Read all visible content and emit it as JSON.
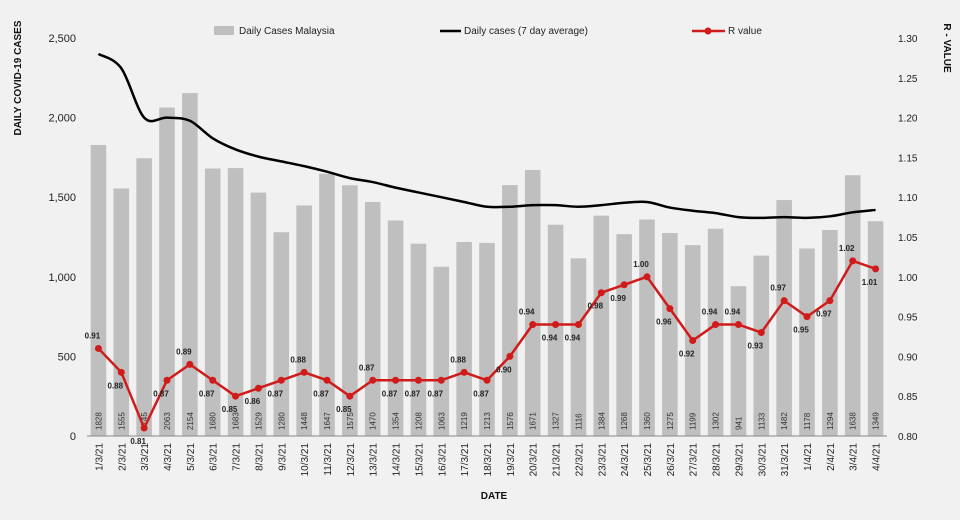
{
  "chart_data": {
    "type": "bar",
    "xlabel": "DATE",
    "ylabel": "DAILY COVID-19 CASES",
    "y2label": "R - VALUE",
    "ylim": [
      0,
      2500
    ],
    "y2lim": [
      0.8,
      1.3
    ],
    "y_ticks": [
      "0",
      "500",
      "1,000",
      "1,500",
      "2,000",
      "2,500"
    ],
    "y2_ticks": [
      "0.80",
      "0.85",
      "0.90",
      "0.95",
      "1.00",
      "1.05",
      "1.10",
      "1.15",
      "1.20",
      "1.25",
      "1.30"
    ],
    "legend_placement": "top",
    "grid": false,
    "categories": [
      "1/3/21",
      "2/3/21",
      "3/3/21",
      "4/3/21",
      "5/3/21",
      "6/3/21",
      "7/3/21",
      "8/3/21",
      "9/3/21",
      "10/3/21",
      "11/3/21",
      "12/3/21",
      "13/3/21",
      "14/3/21",
      "15/3/21",
      "16/3/21",
      "17/3/21",
      "18/3/21",
      "19/3/21",
      "20/3/21",
      "21/3/21",
      "22/3/21",
      "23/3/21",
      "24/3/21",
      "25/3/21",
      "26/3/21",
      "27/3/21",
      "28/3/21",
      "29/3/21",
      "30/3/21",
      "31/3/21",
      "1/4/21",
      "2/4/21",
      "3/4/21",
      "4/4/21"
    ],
    "series": [
      {
        "name": "Daily Cases Malaysia",
        "type": "bar",
        "axis": "left",
        "color": "#bfbfbf",
        "values": [
          1828,
          1555,
          1745,
          2063,
          2154,
          1680,
          1683,
          1529,
          1280,
          1448,
          1647,
          1575,
          1470,
          1354,
          1208,
          1063,
          1219,
          1213,
          1576,
          1671,
          1327,
          1116,
          1384,
          1268,
          1360,
          1275,
          1199,
          1302,
          941,
          1133,
          1482,
          1178,
          1294,
          1638,
          1349
        ],
        "labels": [
          "1828",
          "1555",
          "1745",
          "2063",
          "2154",
          "1680",
          "1683",
          "1529",
          "1280",
          "1448",
          "1647",
          "1575",
          "1470",
          "1354",
          "1208",
          "1063",
          "1219",
          "1213",
          "1576",
          "1671",
          "1327",
          "1116",
          "1384",
          "1268",
          "1360",
          "1275",
          "1199",
          "1302",
          "941",
          "1133",
          "1482",
          "1178",
          "1294",
          "1638",
          "1349"
        ]
      },
      {
        "name": "Daily cases (7 day average)",
        "type": "line",
        "axis": "left",
        "color": "#000000",
        "values": [
          2400,
          2310,
          2000,
          2000,
          1980,
          1870,
          1800,
          1755,
          1725,
          1695,
          1660,
          1620,
          1595,
          1560,
          1530,
          1500,
          1470,
          1440,
          1440,
          1450,
          1450,
          1440,
          1450,
          1465,
          1470,
          1435,
          1415,
          1400,
          1375,
          1370,
          1375,
          1370,
          1380,
          1405,
          1420
        ]
      },
      {
        "name": "R value",
        "type": "line",
        "axis": "right",
        "color": "#d11b1b",
        "values": [
          0.91,
          0.88,
          0.81,
          0.87,
          0.89,
          0.87,
          0.85,
          0.86,
          0.87,
          0.88,
          0.87,
          0.85,
          0.87,
          0.87,
          0.87,
          0.87,
          0.88,
          0.87,
          0.9,
          0.94,
          0.94,
          0.94,
          0.98,
          0.99,
          1.0,
          0.96,
          0.92,
          0.94,
          0.94,
          0.93,
          0.97,
          0.95,
          0.97,
          1.02,
          1.01
        ],
        "labels": [
          "0.91",
          "0.88",
          "0.81",
          "0.87",
          "0.89",
          "0.87",
          "0.85",
          "0.86",
          "0.87",
          "0.88",
          "0.87",
          "0.85",
          "0.87",
          "0.87",
          "0.87",
          "0.87",
          "0.88",
          "0.87",
          "0.90",
          "0.94",
          "0.94",
          "0.94",
          "0.98",
          "0.99",
          "1.00",
          "0.96",
          "0.92",
          "0.94",
          "0.94",
          "0.93",
          "0.97",
          "0.95",
          "0.97",
          "1.02",
          "1.01"
        ]
      }
    ]
  }
}
